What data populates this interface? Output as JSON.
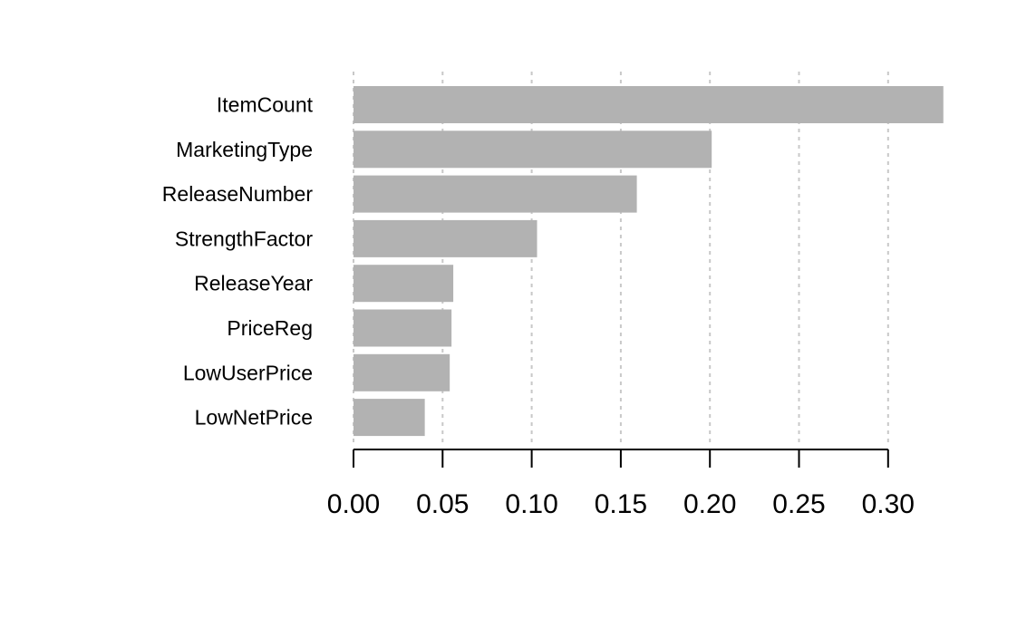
{
  "chart_data": {
    "type": "bar",
    "orientation": "horizontal",
    "title": "",
    "xlabel": "",
    "ylabel": "",
    "categories": [
      "ItemCount",
      "MarketingType",
      "ReleaseNumber",
      "StrengthFactor",
      "ReleaseYear",
      "PriceReg",
      "LowUserPrice",
      "LowNetPrice"
    ],
    "values": [
      0.331,
      0.201,
      0.159,
      0.103,
      0.056,
      0.055,
      0.054,
      0.04
    ],
    "xlim": [
      0,
      0.33
    ],
    "xticks": [
      "0.00",
      "0.05",
      "0.10",
      "0.15",
      "0.20",
      "0.25",
      "0.30"
    ],
    "grid": "vertical dotted",
    "legend": "none",
    "colors": {
      "bar": "#b2b2b2",
      "grid": "#c8c8c8",
      "axis": "#000000",
      "text": "#000000"
    }
  }
}
